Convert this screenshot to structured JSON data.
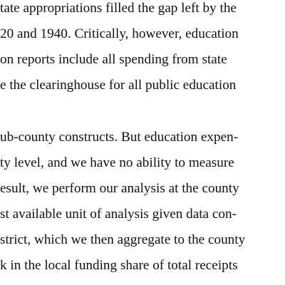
{
  "paragraph_1": {
    "lines": [
      "tate appropriations filled the gap left by the",
      "20 and 1940.  Critically, however, education",
      "on reports include all spending from state",
      "e the clearinghouse for all public education"
    ]
  },
  "paragraph_2": {
    "lines": [
      "ub-county constructs.  But education expen-",
      "ty level, and we have no ability to measure",
      "esult, we perform our analysis at the county",
      "st available unit of analysis given data con-",
      "strict, which we then aggregate to the county",
      "k in the local funding share of total receipts"
    ]
  }
}
